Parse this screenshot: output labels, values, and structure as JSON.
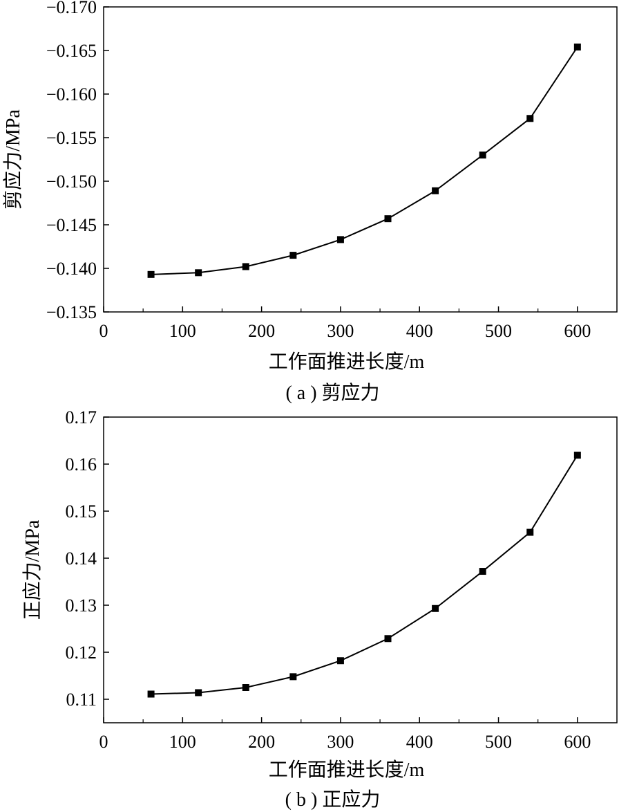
{
  "chart_data": [
    {
      "type": "line",
      "caption": "( a ) 剪应力",
      "xlabel": "工作面推进长度/m",
      "ylabel": "剪应力/MPa",
      "xlim": [
        0,
        650
      ],
      "ylim": [
        -0.135,
        -0.17
      ],
      "x_ticks": [
        0,
        100,
        200,
        300,
        400,
        500,
        600
      ],
      "y_ticks": [
        -0.135,
        -0.14,
        -0.145,
        -0.15,
        -0.155,
        -0.16,
        -0.165,
        -0.17
      ],
      "y_tick_labels": [
        "−0.135",
        "−0.140",
        "−0.145",
        "−0.150",
        "−0.155",
        "−0.160",
        "−0.165",
        "−0.170"
      ],
      "marker": "square",
      "x": [
        60,
        120,
        180,
        240,
        300,
        360,
        420,
        480,
        540,
        600
      ],
      "y": [
        -0.1393,
        -0.1395,
        -0.1402,
        -0.1415,
        -0.1433,
        -0.1457,
        -0.1489,
        -0.153,
        -0.1572,
        -0.1654
      ],
      "grid": false,
      "legend": "none"
    },
    {
      "type": "line",
      "caption": "( b ) 正应力",
      "xlabel": "工作面推进长度/m",
      "ylabel": "正应力/MPa",
      "xlim": [
        0,
        650
      ],
      "ylim": [
        0.105,
        0.17
      ],
      "x_ticks": [
        0,
        100,
        200,
        300,
        400,
        500,
        600
      ],
      "y_ticks": [
        0.11,
        0.12,
        0.13,
        0.14,
        0.15,
        0.16,
        0.17
      ],
      "y_tick_labels": [
        "0.11",
        "0.12",
        "0.13",
        "0.14",
        "0.15",
        "0.16",
        "0.17"
      ],
      "marker": "square",
      "x": [
        60,
        120,
        180,
        240,
        300,
        360,
        420,
        480,
        540,
        600
      ],
      "y": [
        0.1111,
        0.1114,
        0.1125,
        0.1148,
        0.1182,
        0.1229,
        0.1293,
        0.1372,
        0.1455,
        0.1619
      ],
      "grid": false,
      "legend": "none"
    }
  ]
}
